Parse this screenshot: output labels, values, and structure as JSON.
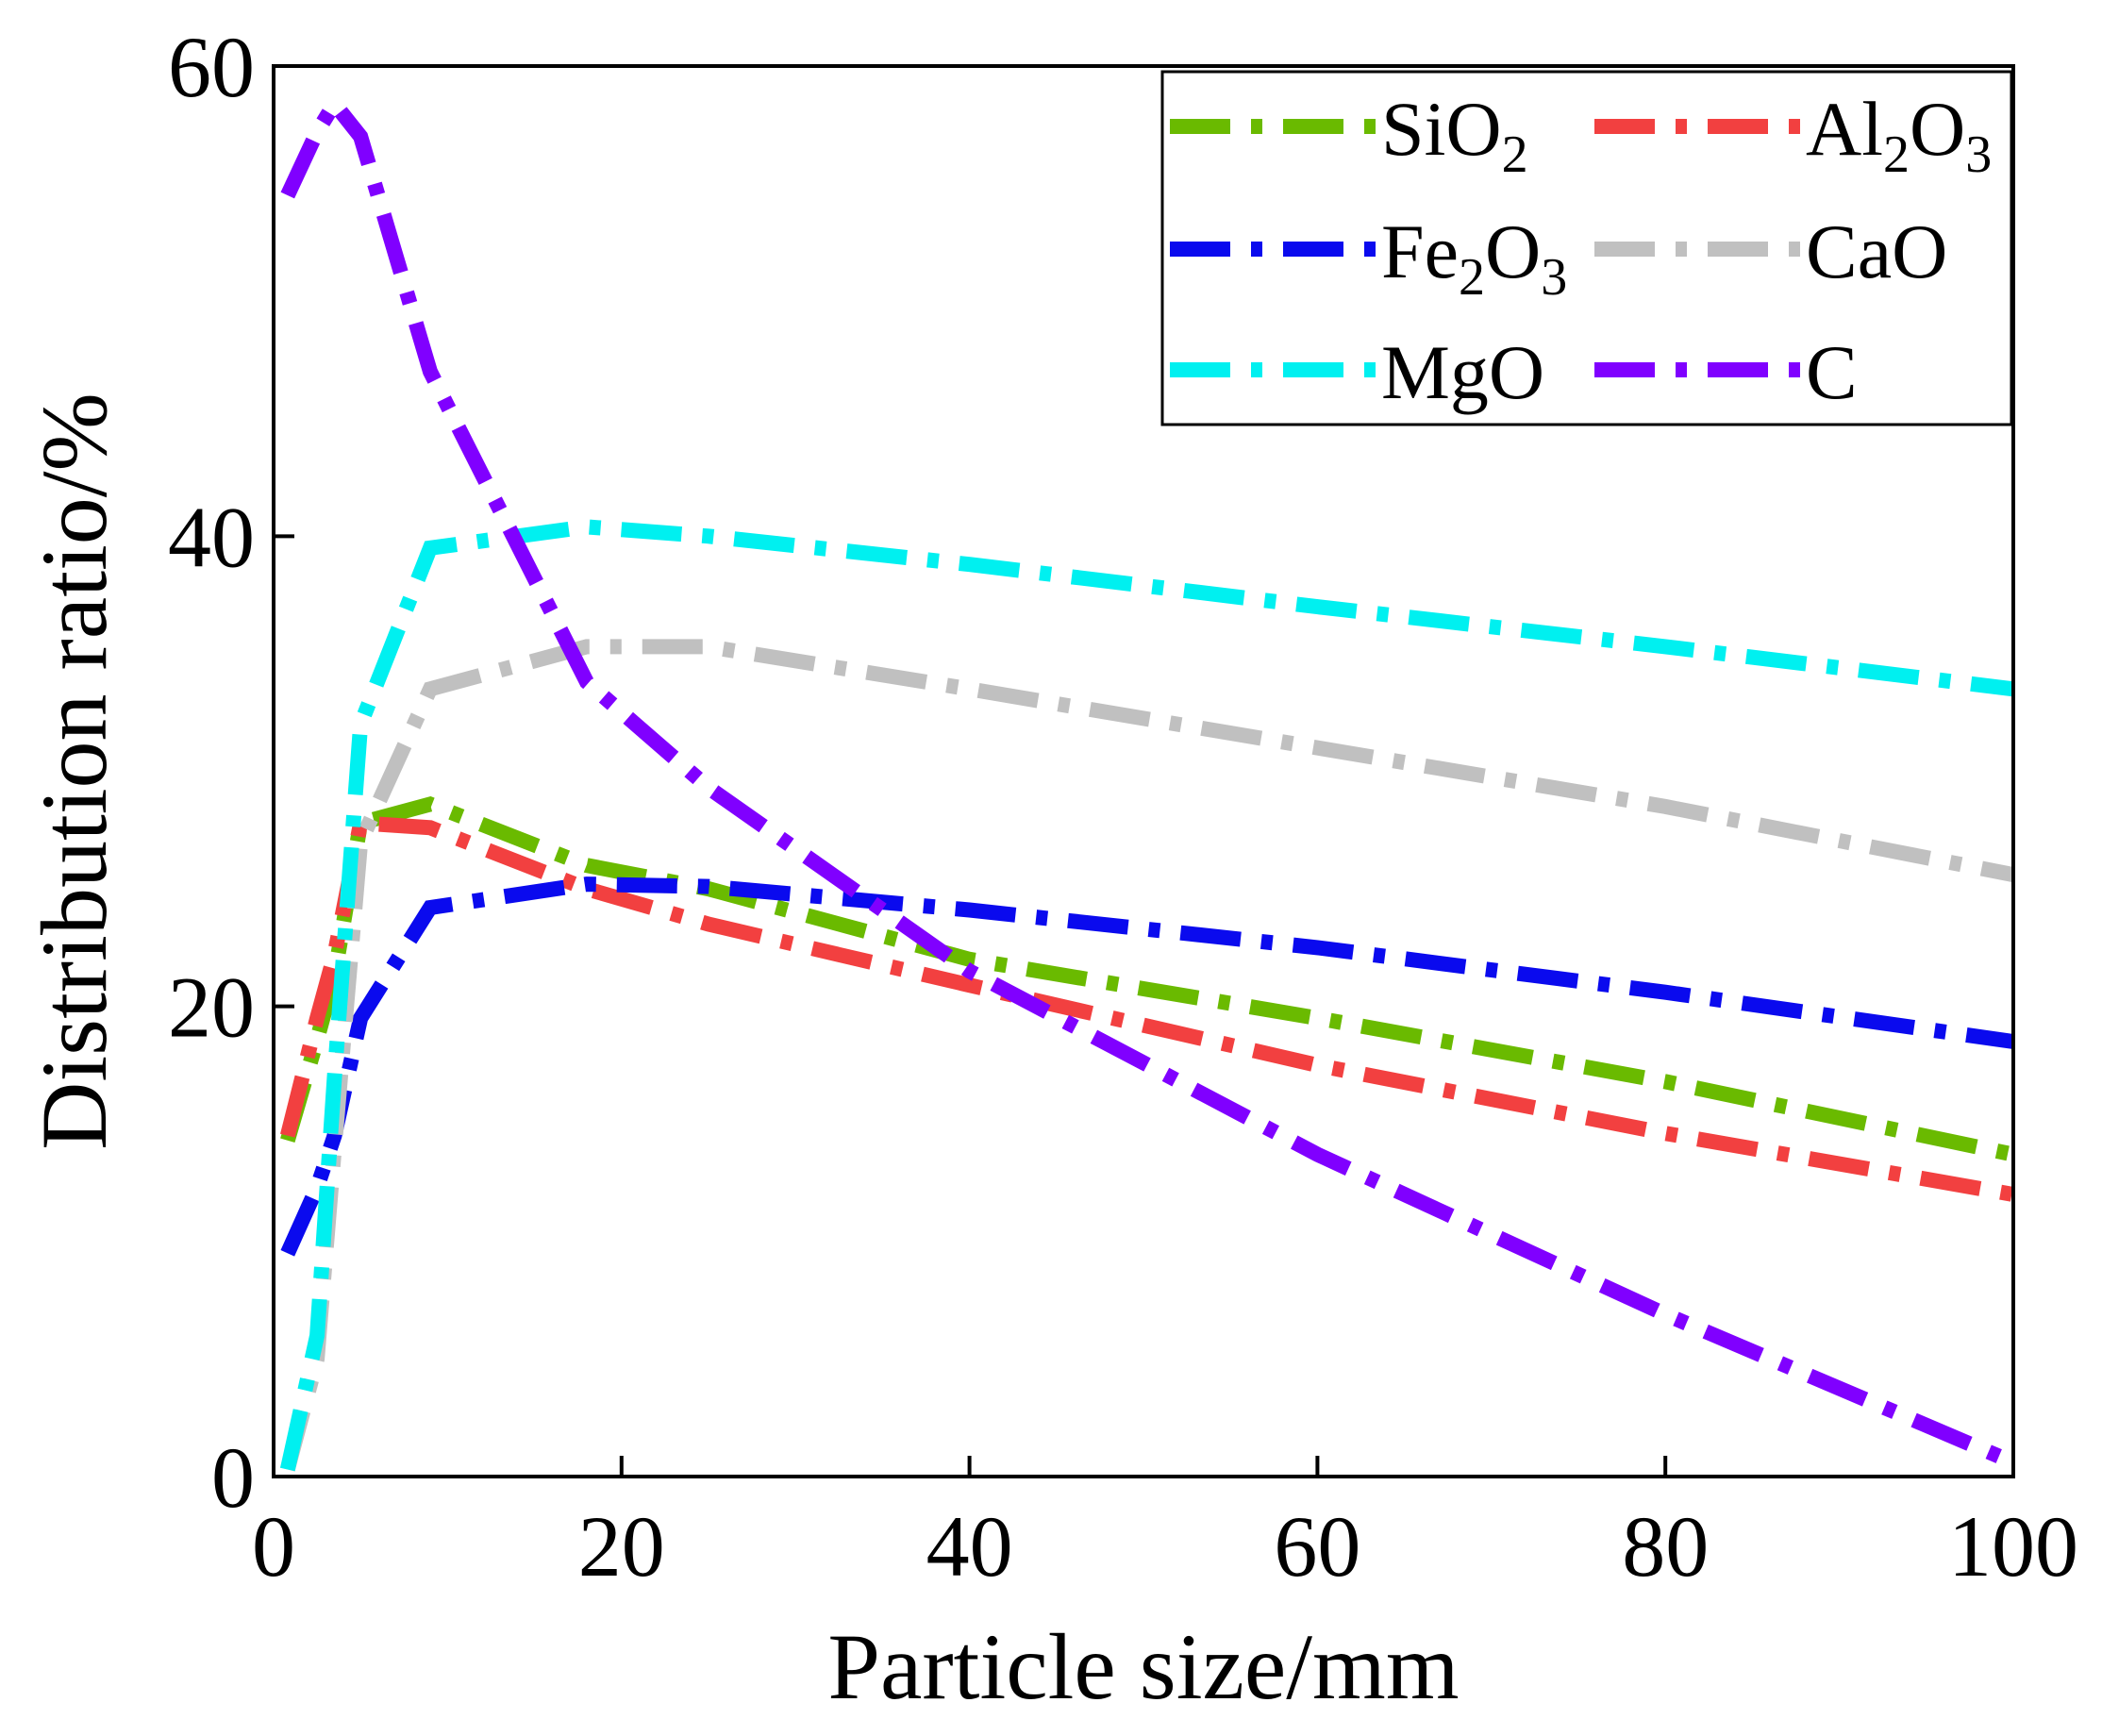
{
  "chart_data": {
    "type": "line",
    "title": "",
    "xlabel": "Particle size/mm",
    "ylabel": "Distribution ratio/%",
    "xlim": [
      0,
      100
    ],
    "ylim": [
      0,
      60
    ],
    "xticks": [
      0,
      20,
      40,
      60,
      80,
      100
    ],
    "yticks": [
      0,
      20,
      40,
      60
    ],
    "xtick_labels": [
      "0",
      "20",
      "40",
      "60",
      "80",
      "100"
    ],
    "ytick_labels": [
      "0",
      "20",
      "40",
      "60"
    ],
    "grid": false,
    "legend_position": "top-right",
    "x": [
      0.8,
      2.5,
      3.5,
      5,
      9,
      18,
      25,
      40,
      60,
      80,
      100
    ],
    "series": [
      {
        "name": "SiO2",
        "label_main": "SiO",
        "label_sub1": "2",
        "label_mid": "",
        "label_sub2": "",
        "color": "#6aba00",
        "values": [
          14.3,
          18.6,
          21.3,
          27.8,
          28.6,
          26.0,
          25.0,
          22.0,
          19.5,
          16.8,
          13.7
        ]
      },
      {
        "name": "Al2O3",
        "label_main": "Al",
        "label_sub1": "2",
        "label_mid": "O",
        "label_sub2": "3",
        "color": "#f24040",
        "values": [
          14.5,
          19.5,
          22.2,
          27.8,
          27.6,
          25.0,
          23.5,
          20.9,
          17.5,
          14.6,
          12.0
        ]
      },
      {
        "name": "Fe2O3",
        "label_main": "Fe",
        "label_sub1": "2",
        "label_mid": "O",
        "label_sub2": "3",
        "color": "#0a0aee",
        "values": [
          9.5,
          12.3,
          14.5,
          19.5,
          24.2,
          25.2,
          25.1,
          24.1,
          22.5,
          20.6,
          18.5
        ]
      },
      {
        "name": "CaO",
        "label_main": "CaO",
        "label_sub1": "",
        "label_mid": "",
        "label_sub2": "",
        "color": "#c0c0c0",
        "values": [
          0.3,
          5.0,
          14.0,
          27.0,
          33.5,
          35.3,
          35.3,
          33.5,
          31.0,
          28.5,
          25.6
        ]
      },
      {
        "name": "MgO",
        "label_main": "MgO",
        "label_sub1": "",
        "label_mid": "",
        "label_sub2": "",
        "color": "#00f0f0",
        "values": [
          0.3,
          6.0,
          17.0,
          32.0,
          39.5,
          40.4,
          40.0,
          38.8,
          37.0,
          35.3,
          33.5
        ]
      },
      {
        "name": "C",
        "label_main": "C",
        "label_sub1": "",
        "label_mid": "",
        "label_sub2": "",
        "color": "#8000ff",
        "values": [
          54.5,
          57.2,
          58.4,
          57.0,
          47.0,
          33.8,
          29.3,
          21.5,
          13.7,
          6.9,
          0.6
        ]
      }
    ]
  }
}
